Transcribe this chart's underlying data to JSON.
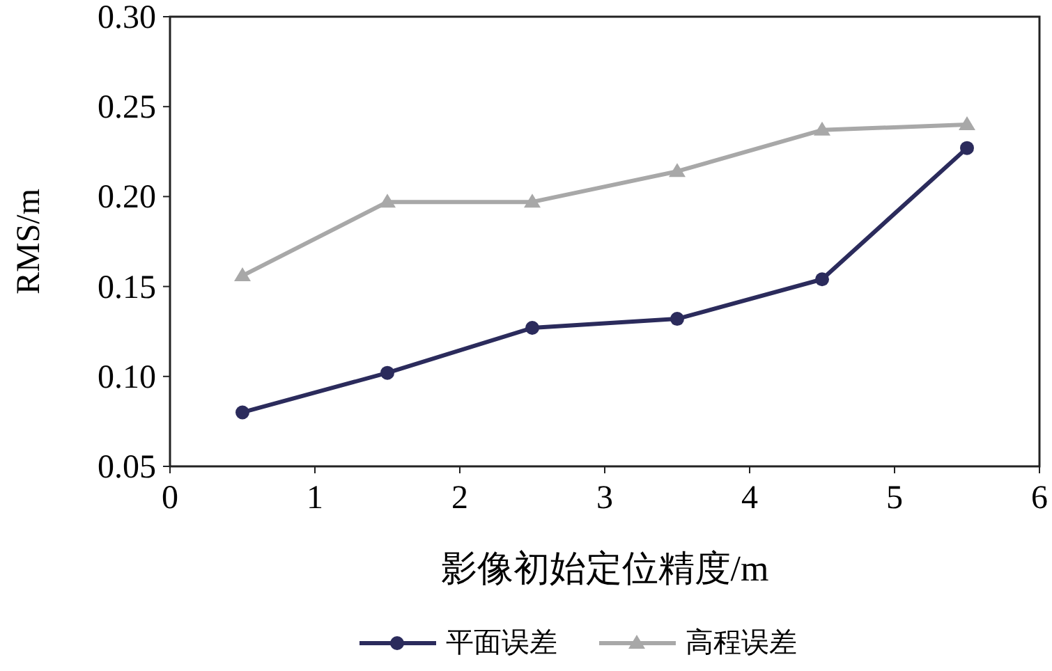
{
  "chart_data": {
    "type": "line",
    "xlabel": "影像初始定位精度/m",
    "ylabel": "RMS/m",
    "x": [
      0.5,
      1.5,
      2.5,
      3.5,
      4.5,
      5.5
    ],
    "series": [
      {
        "name": "平面误差",
        "color": "#2b2b5c",
        "marker": "circle",
        "values": [
          0.08,
          0.102,
          0.127,
          0.132,
          0.154,
          0.227
        ]
      },
      {
        "name": "高程误差",
        "color": "#a8a8a8",
        "marker": "triangle",
        "values": [
          0.156,
          0.197,
          0.197,
          0.214,
          0.237,
          0.24
        ]
      }
    ],
    "xlim": [
      0,
      6
    ],
    "xticks": [
      0,
      1,
      2,
      3,
      4,
      5,
      6
    ],
    "ylim": [
      0.05,
      0.3
    ],
    "yticks": [
      0.05,
      {
        "value": 0.1,
        "label": "0.10"
      },
      0.15,
      {
        "value": 0.2,
        "label": "0.20"
      },
      0.25,
      {
        "value": 0.3,
        "label": "0.30"
      }
    ],
    "legend": "bottom",
    "grid": false,
    "line_style": "solid"
  }
}
